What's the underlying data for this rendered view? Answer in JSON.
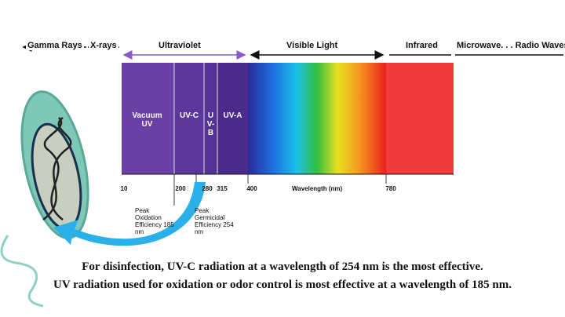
{
  "bands": {
    "gamma": "Gamma Rays",
    "xrays": "X-rays",
    "ultraviolet": "Ultraviolet",
    "visible": "Visible Light",
    "infrared": "Infrared",
    "radio": "Microwave. . . Radio Waves"
  },
  "uv_regions": {
    "vacuum": "Vacuum UV",
    "uvc": "UV-C",
    "uvb": "UV-B",
    "uva": "UV-A"
  },
  "ticks": [
    10,
    200,
    280,
    315,
    400,
    780
  ],
  "axis_label": "Wavelength (nm)",
  "annotations": {
    "oxidation": "Peak Oxidation Efficiency 185 nm",
    "germicidal": "Peak Germicidal Efficiency 254 nm"
  },
  "caption": [
    "For disinfection, UV-C radiation at a wavelength of 254 nm is the most effective.",
    "UV radiation used for oxidation or odor control is most effective at a wavelength of 185 nm."
  ]
}
